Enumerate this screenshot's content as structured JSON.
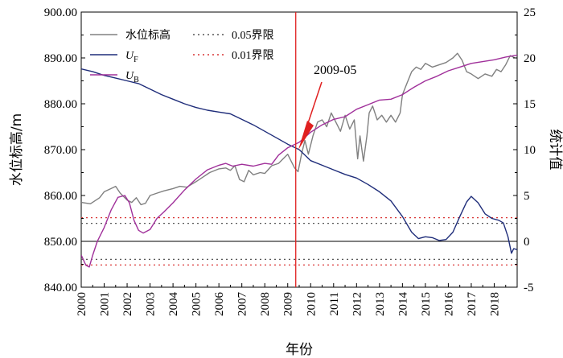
{
  "chart_data": {
    "type": "line",
    "xlabel": "年份",
    "ylabel_left": "水位标高/m",
    "ylabel_right": "统计值",
    "xlim": [
      2000,
      2019
    ],
    "ylim_left": [
      840,
      900
    ],
    "ylim_right": [
      -5,
      25
    ],
    "x_ticks": [
      "2000",
      "2001",
      "2002",
      "2003",
      "2004",
      "2005",
      "2006",
      "2007",
      "2008",
      "2009",
      "2010",
      "2011",
      "2012",
      "2013",
      "2014",
      "2015",
      "2016",
      "2017",
      "2018"
    ],
    "y_ticks_left": [
      "840.00",
      "850.00",
      "860.00",
      "870.00",
      "880.00",
      "890.00",
      "900.00"
    ],
    "y_ticks_right": [
      "-5",
      "0",
      "5",
      "10",
      "15",
      "20",
      "25"
    ],
    "legend": {
      "water_level": "水位标高",
      "uf_main": "U",
      "uf_sub": "F",
      "ub_main": "U",
      "ub_sub": "B",
      "limit_005": "0.05界限",
      "limit_001": "0.01界限"
    },
    "colors": {
      "water_level": "#808080",
      "uf": "#1f2d7a",
      "ub": "#a0309a",
      "limit_005": "#555555",
      "limit_001": "#d93333",
      "vline": "#e02020",
      "zero_line": "#000000"
    },
    "thresholds": {
      "limit_005": [
        1.96,
        -1.96
      ],
      "limit_001": [
        2.58,
        -2.58
      ]
    },
    "annotation": {
      "text": "2009-05",
      "x": 2009.35,
      "y_right": 10.3
    },
    "series": [
      {
        "key": "water_level",
        "axis": "left",
        "points": [
          [
            2000.0,
            858.5
          ],
          [
            2000.4,
            858.2
          ],
          [
            2000.8,
            859.5
          ],
          [
            2001.0,
            860.8
          ],
          [
            2001.3,
            861.5
          ],
          [
            2001.5,
            862.0
          ],
          [
            2001.7,
            860.5
          ],
          [
            2002.0,
            859.0
          ],
          [
            2002.2,
            858.5
          ],
          [
            2002.4,
            859.5
          ],
          [
            2002.6,
            858.0
          ],
          [
            2002.8,
            858.3
          ],
          [
            2003.0,
            860.0
          ],
          [
            2003.3,
            860.5
          ],
          [
            2003.6,
            861.0
          ],
          [
            2004.0,
            861.5
          ],
          [
            2004.3,
            862.0
          ],
          [
            2004.6,
            861.8
          ],
          [
            2005.0,
            863.0
          ],
          [
            2005.3,
            864.0
          ],
          [
            2005.6,
            865.0
          ],
          [
            2006.0,
            865.8
          ],
          [
            2006.3,
            866.0
          ],
          [
            2006.5,
            865.5
          ],
          [
            2006.7,
            866.5
          ],
          [
            2006.9,
            863.5
          ],
          [
            2007.1,
            863.0
          ],
          [
            2007.3,
            865.5
          ],
          [
            2007.5,
            864.5
          ],
          [
            2007.8,
            865.0
          ],
          [
            2008.0,
            864.8
          ],
          [
            2008.3,
            866.5
          ],
          [
            2008.6,
            867.0
          ],
          [
            2008.8,
            868.0
          ],
          [
            2009.0,
            869.0
          ],
          [
            2009.15,
            867.5
          ],
          [
            2009.3,
            866.0
          ],
          [
            2009.45,
            865.2
          ],
          [
            2009.6,
            869.0
          ],
          [
            2009.75,
            872.0
          ],
          [
            2009.9,
            869.0
          ],
          [
            2010.1,
            873.0
          ],
          [
            2010.3,
            876.0
          ],
          [
            2010.5,
            876.5
          ],
          [
            2010.7,
            875.0
          ],
          [
            2010.9,
            878.0
          ],
          [
            2011.1,
            876.0
          ],
          [
            2011.3,
            874.0
          ],
          [
            2011.5,
            877.5
          ],
          [
            2011.7,
            874.5
          ],
          [
            2011.9,
            876.5
          ],
          [
            2012.05,
            868.0
          ],
          [
            2012.15,
            873.0
          ],
          [
            2012.3,
            867.5
          ],
          [
            2012.45,
            873.0
          ],
          [
            2012.55,
            878.0
          ],
          [
            2012.7,
            879.5
          ],
          [
            2012.9,
            876.5
          ],
          [
            2013.1,
            877.5
          ],
          [
            2013.3,
            876.0
          ],
          [
            2013.5,
            877.5
          ],
          [
            2013.7,
            876.0
          ],
          [
            2013.9,
            878.0
          ],
          [
            2014.0,
            882.0
          ],
          [
            2014.2,
            884.5
          ],
          [
            2014.4,
            887.0
          ],
          [
            2014.6,
            888.0
          ],
          [
            2014.8,
            887.5
          ],
          [
            2015.0,
            888.8
          ],
          [
            2015.3,
            888.0
          ],
          [
            2015.6,
            888.5
          ],
          [
            2015.9,
            889.0
          ],
          [
            2016.2,
            890.0
          ],
          [
            2016.4,
            891.0
          ],
          [
            2016.6,
            889.5
          ],
          [
            2016.8,
            887.0
          ],
          [
            2017.0,
            886.5
          ],
          [
            2017.3,
            885.5
          ],
          [
            2017.6,
            886.5
          ],
          [
            2017.9,
            886.0
          ],
          [
            2018.1,
            887.5
          ],
          [
            2018.3,
            887.0
          ],
          [
            2018.5,
            888.5
          ],
          [
            2018.7,
            890.5
          ],
          [
            2018.9,
            890.0
          ]
        ]
      },
      {
        "key": "uf",
        "axis": "right",
        "points": [
          [
            2000.0,
            18.8
          ],
          [
            2000.5,
            18.5
          ],
          [
            2001.0,
            18.1
          ],
          [
            2001.5,
            17.8
          ],
          [
            2002.0,
            17.5
          ],
          [
            2002.5,
            17.2
          ],
          [
            2003.0,
            16.6
          ],
          [
            2003.5,
            16.0
          ],
          [
            2004.0,
            15.5
          ],
          [
            2004.5,
            15.0
          ],
          [
            2005.0,
            14.6
          ],
          [
            2005.5,
            14.3
          ],
          [
            2006.0,
            14.1
          ],
          [
            2006.5,
            13.9
          ],
          [
            2007.0,
            13.3
          ],
          [
            2007.5,
            12.7
          ],
          [
            2008.0,
            12.0
          ],
          [
            2008.5,
            11.3
          ],
          [
            2009.0,
            10.6
          ],
          [
            2009.5,
            10.0
          ],
          [
            2010.0,
            8.8
          ],
          [
            2010.5,
            8.3
          ],
          [
            2011.0,
            7.8
          ],
          [
            2011.5,
            7.3
          ],
          [
            2012.0,
            6.9
          ],
          [
            2012.5,
            6.2
          ],
          [
            2013.0,
            5.4
          ],
          [
            2013.5,
            4.4
          ],
          [
            2014.0,
            2.7
          ],
          [
            2014.4,
            1.0
          ],
          [
            2014.7,
            0.3
          ],
          [
            2015.0,
            0.5
          ],
          [
            2015.3,
            0.4
          ],
          [
            2015.6,
            0.1
          ],
          [
            2015.9,
            0.2
          ],
          [
            2016.2,
            1.0
          ],
          [
            2016.5,
            2.7
          ],
          [
            2016.8,
            4.3
          ],
          [
            2017.0,
            4.9
          ],
          [
            2017.3,
            4.2
          ],
          [
            2017.6,
            3.0
          ],
          [
            2017.9,
            2.5
          ],
          [
            2018.2,
            2.3
          ],
          [
            2018.4,
            2.0
          ],
          [
            2018.6,
            0.5
          ],
          [
            2018.75,
            -1.3
          ],
          [
            2018.85,
            -0.8
          ],
          [
            2019.0,
            -0.9
          ]
        ]
      },
      {
        "key": "ub",
        "axis": "right",
        "points": [
          [
            2000.0,
            -1.5
          ],
          [
            2000.2,
            -2.6
          ],
          [
            2000.35,
            -2.8
          ],
          [
            2000.5,
            -1.5
          ],
          [
            2000.7,
            0.0
          ],
          [
            2001.0,
            1.5
          ],
          [
            2001.3,
            3.4
          ],
          [
            2001.6,
            4.8
          ],
          [
            2001.9,
            5.0
          ],
          [
            2002.1,
            4.2
          ],
          [
            2002.3,
            2.3
          ],
          [
            2002.5,
            1.2
          ],
          [
            2002.7,
            0.9
          ],
          [
            2003.0,
            1.3
          ],
          [
            2003.3,
            2.5
          ],
          [
            2003.6,
            3.2
          ],
          [
            2004.0,
            4.2
          ],
          [
            2004.5,
            5.6
          ],
          [
            2005.0,
            6.8
          ],
          [
            2005.5,
            7.8
          ],
          [
            2006.0,
            8.3
          ],
          [
            2006.3,
            8.5
          ],
          [
            2006.6,
            8.2
          ],
          [
            2007.0,
            8.4
          ],
          [
            2007.5,
            8.2
          ],
          [
            2008.0,
            8.5
          ],
          [
            2008.3,
            8.4
          ],
          [
            2008.6,
            9.4
          ],
          [
            2009.0,
            10.2
          ],
          [
            2009.5,
            10.8
          ],
          [
            2010.0,
            11.9
          ],
          [
            2010.5,
            12.7
          ],
          [
            2011.0,
            13.3
          ],
          [
            2011.5,
            13.6
          ],
          [
            2012.0,
            14.4
          ],
          [
            2012.5,
            14.9
          ],
          [
            2013.0,
            15.4
          ],
          [
            2013.5,
            15.5
          ],
          [
            2014.0,
            16.0
          ],
          [
            2014.5,
            16.8
          ],
          [
            2015.0,
            17.5
          ],
          [
            2015.5,
            18.0
          ],
          [
            2016.0,
            18.6
          ],
          [
            2016.5,
            19.0
          ],
          [
            2017.0,
            19.4
          ],
          [
            2017.5,
            19.6
          ],
          [
            2018.0,
            19.8
          ],
          [
            2018.5,
            20.1
          ],
          [
            2019.0,
            20.3
          ]
        ]
      }
    ]
  }
}
